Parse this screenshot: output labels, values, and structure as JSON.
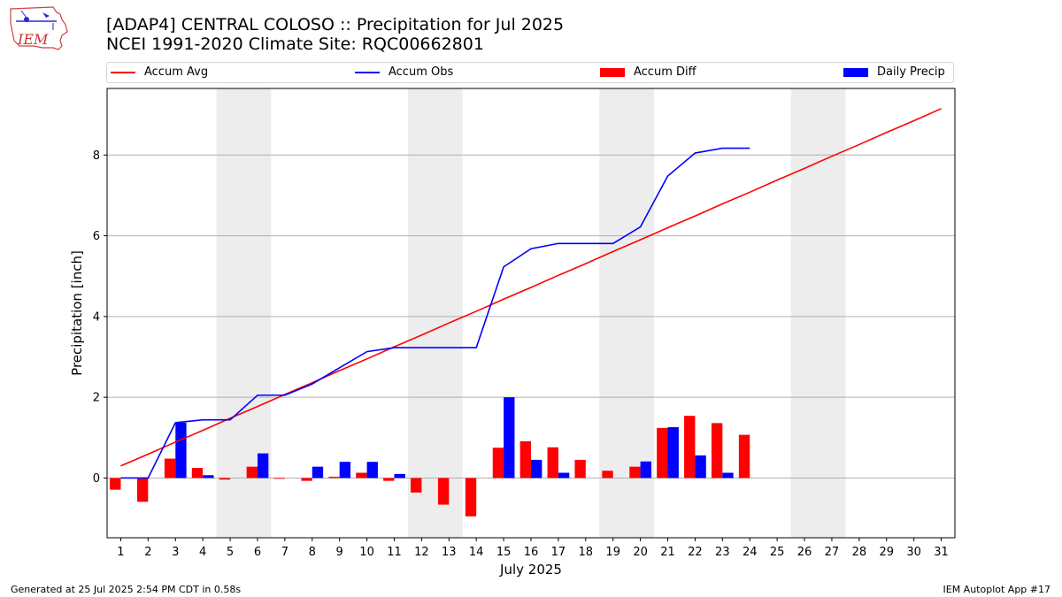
{
  "header": {
    "logo_text": "IEM",
    "title_line1": "[ADAP4] CENTRAL COLOSO :: Precipitation for Jul 2025",
    "title_line2": "NCEI 1991-2020 Climate Site: RQC00662801"
  },
  "legend": {
    "items": [
      {
        "label": "Accum Avg",
        "kind": "line",
        "color": "#ff0000"
      },
      {
        "label": "Accum Obs",
        "kind": "line",
        "color": "#0000ff"
      },
      {
        "label": "Accum Diff",
        "kind": "box",
        "color": "#ff0000"
      },
      {
        "label": "Daily Precip",
        "kind": "box",
        "color": "#0000ff"
      }
    ]
  },
  "chart_data": {
    "type": "bar",
    "xlabel": "July 2025",
    "ylabel": "Precipitation [inch]",
    "x": [
      1,
      2,
      3,
      4,
      5,
      6,
      7,
      8,
      9,
      10,
      11,
      12,
      13,
      14,
      15,
      16,
      17,
      18,
      19,
      20,
      21,
      22,
      23,
      24,
      25,
      26,
      27,
      28,
      29,
      30,
      31
    ],
    "xlim": [
      0.5,
      31.5
    ],
    "ylim": [
      -1.48,
      9.65
    ],
    "yticks": [
      0,
      2,
      4,
      6,
      8
    ],
    "grid": "y",
    "legend_position": "top",
    "weekend_bands": [
      [
        4.5,
        6.5
      ],
      [
        11.5,
        13.5
      ],
      [
        18.5,
        20.5
      ],
      [
        25.5,
        27.5
      ]
    ],
    "series": [
      {
        "name": "Accum Avg",
        "type": "line",
        "color": "#ff0000",
        "values": [
          0.3,
          0.59,
          0.89,
          1.18,
          1.48,
          1.77,
          2.07,
          2.36,
          2.66,
          2.95,
          3.25,
          3.54,
          3.84,
          4.13,
          4.43,
          4.72,
          5.02,
          5.31,
          5.61,
          5.9,
          6.2,
          6.49,
          6.79,
          7.08,
          7.38,
          7.67,
          7.97,
          8.26,
          8.56,
          8.85,
          9.15
        ]
      },
      {
        "name": "Accum Obs",
        "type": "line",
        "color": "#0000ff",
        "values": [
          0.0,
          0.0,
          1.37,
          1.44,
          1.44,
          2.05,
          2.05,
          2.33,
          2.73,
          3.13,
          3.23,
          3.23,
          3.23,
          3.23,
          5.23,
          5.68,
          5.81,
          5.81,
          5.81,
          6.22,
          7.48,
          8.05,
          8.17,
          8.17,
          null,
          null,
          null,
          null,
          null,
          null,
          null
        ]
      },
      {
        "name": "Accum Diff",
        "type": "bar",
        "color": "#ff0000",
        "values": [
          -0.29,
          -0.59,
          0.48,
          0.25,
          -0.04,
          0.28,
          -0.02,
          -0.07,
          0.03,
          0.13,
          -0.07,
          -0.36,
          -0.66,
          -0.95,
          0.75,
          0.91,
          0.76,
          0.45,
          0.18,
          0.28,
          1.24,
          1.54,
          1.36,
          1.07,
          null,
          null,
          null,
          null,
          null,
          null,
          null
        ]
      },
      {
        "name": "Daily Precip",
        "type": "bar",
        "color": "#0000ff",
        "values": [
          0.0,
          0.0,
          1.37,
          0.07,
          0.0,
          0.61,
          0.0,
          0.28,
          0.4,
          0.4,
          0.1,
          0.0,
          0.0,
          0.0,
          2.0,
          0.45,
          0.13,
          0.0,
          0.0,
          0.41,
          1.26,
          0.56,
          0.13,
          0.0,
          null,
          null,
          null,
          null,
          null,
          null,
          null
        ]
      }
    ]
  },
  "footer": {
    "generated": "Generated at 25 Jul 2025 2:54 PM CDT in 0.58s",
    "app": "IEM Autoplot App #17"
  }
}
